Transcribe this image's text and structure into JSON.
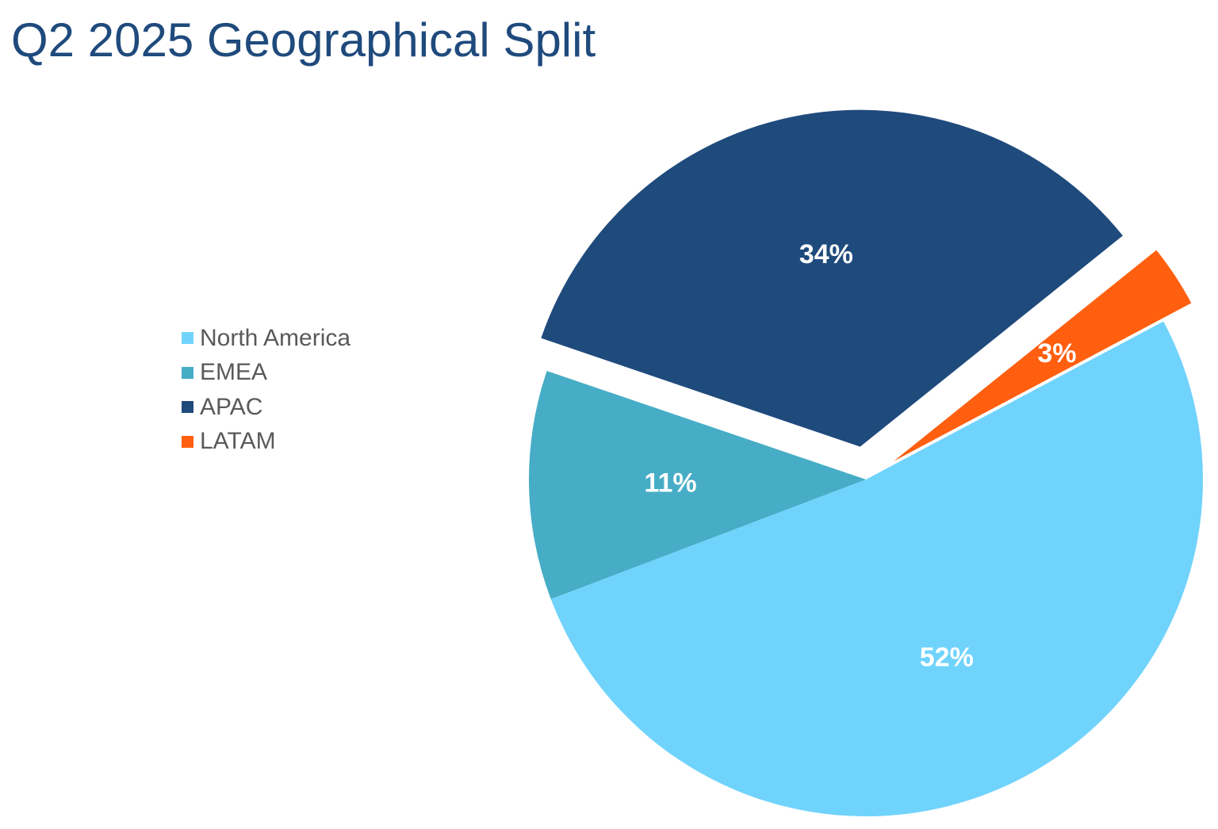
{
  "chart_data": {
    "type": "pie",
    "title": "Q2 2025 Geographical Split",
    "slices": [
      {
        "name": "North America",
        "value": 52,
        "label": "52%",
        "color": "#70d3fc",
        "exploded": false
      },
      {
        "name": "EMEA",
        "value": 11,
        "label": "11%",
        "color": "#47adc6",
        "exploded": false
      },
      {
        "name": "APAC",
        "value": 34,
        "label": "34%",
        "color": "#1f4a7c",
        "exploded": true
      },
      {
        "name": "LATAM",
        "value": 3,
        "label": "3%",
        "color": "#ff5f0f",
        "exploded": true
      }
    ],
    "start_angle_deg": 62,
    "direction": "clockwise",
    "legend_position": "left",
    "data_labels": "inside"
  }
}
